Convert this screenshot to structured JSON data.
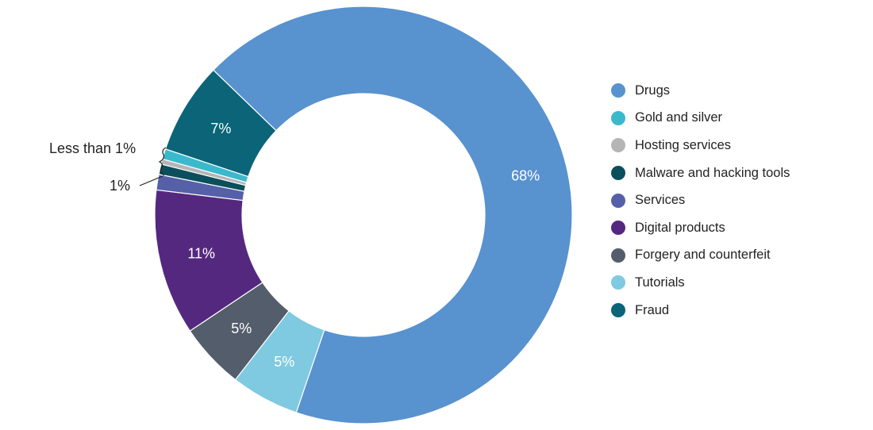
{
  "chart_data": {
    "type": "pie",
    "variant": "donut",
    "start_angle_deg": -46,
    "direction": "clockwise",
    "slices": [
      {
        "name": "Drugs",
        "value": 68,
        "label": "68%",
        "color": "#5892CF"
      },
      {
        "name": "Tutorials",
        "value": 5.3,
        "label": "5%",
        "color": "#7FCAE0"
      },
      {
        "name": "Forgery and counterfeit",
        "value": 5.1,
        "label": "5%",
        "color": "#535D6B"
      },
      {
        "name": "Digital products",
        "value": 11.3,
        "label": "11%",
        "color": "#55287F"
      },
      {
        "name": "Services",
        "value": 1.2,
        "label": "",
        "color": "#5560A8"
      },
      {
        "name": "Malware and hacking tools",
        "value": 0.8,
        "label": "",
        "color": "#0C4F5C"
      },
      {
        "name": "Hosting services",
        "value": 0.4,
        "label": "",
        "color": "#B5B5B5"
      },
      {
        "name": "Gold and silver",
        "value": 0.8,
        "label": "",
        "color": "#3BB9CC"
      },
      {
        "name": "Fraud",
        "value": 7.1,
        "label": "7%",
        "color": "#0B6477"
      }
    ],
    "legend": [
      "Drugs",
      "Gold and silver",
      "Hosting services",
      "Malware and hacking tools",
      "Services",
      "Digital products",
      "Forgery and counterfeit",
      "Tutorials",
      "Fraud"
    ],
    "legend_position": "right",
    "annotations": {
      "less_than_1": "Less than 1%",
      "one_percent": "1%"
    }
  }
}
